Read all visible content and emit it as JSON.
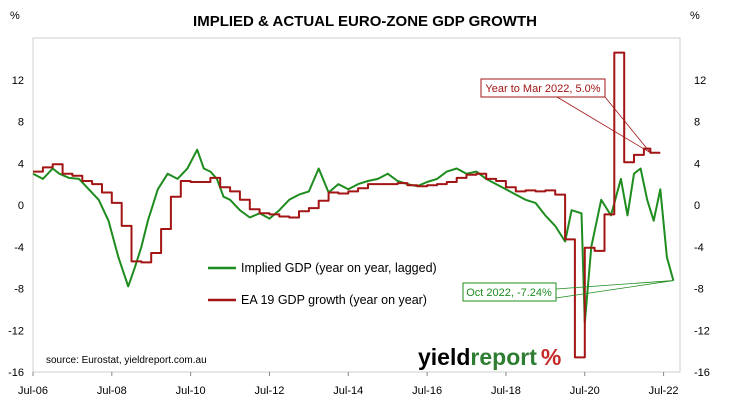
{
  "chart_data": {
    "type": "line",
    "title": "IMPLIED & ACTUAL EURO-ZONE GDP GROWTH",
    "y_unit_left": "%",
    "y_unit_right": "%",
    "ylim": [
      -16,
      16
    ],
    "y_ticks": [
      "12",
      "8",
      "4",
      "0",
      "-4",
      "-8",
      "-12",
      "-16"
    ],
    "y_tick_values": [
      12,
      8,
      4,
      0,
      -4,
      -8,
      -12,
      -16
    ],
    "xlim": [
      "2006-07",
      "2022-12"
    ],
    "x_tick_labels": [
      "Jul-06",
      "Jul-08",
      "Jul-10",
      "Jul-12",
      "Jul-14",
      "Jul-16",
      "Jul-18",
      "Jul-20",
      "Jul-22"
    ],
    "x_tick_dates": [
      "2006-07",
      "2008-07",
      "2010-07",
      "2012-07",
      "2014-07",
      "2016-07",
      "2018-07",
      "2020-07",
      "2022-07"
    ],
    "grid": false,
    "legend_placement": "lower-middle",
    "series": [
      {
        "name": "Implied GDP (year on year, lagged)",
        "color": "#1e8c1e",
        "x": [
          "2006-07",
          "2006-10",
          "2007-01",
          "2007-03",
          "2007-06",
          "2007-09",
          "2007-12",
          "2008-03",
          "2008-06",
          "2008-09",
          "2008-12",
          "2009-02",
          "2009-04",
          "2009-06",
          "2009-09",
          "2009-12",
          "2010-03",
          "2010-06",
          "2010-09",
          "2010-11",
          "2011-01",
          "2011-03",
          "2011-05",
          "2011-07",
          "2011-10",
          "2012-01",
          "2012-04",
          "2012-07",
          "2012-10",
          "2013-01",
          "2013-04",
          "2013-07",
          "2013-10",
          "2014-01",
          "2014-04",
          "2014-07",
          "2014-10",
          "2015-01",
          "2015-04",
          "2015-07",
          "2015-10",
          "2016-01",
          "2016-04",
          "2016-07",
          "2016-10",
          "2017-01",
          "2017-04",
          "2017-07",
          "2017-10",
          "2018-01",
          "2018-04",
          "2018-07",
          "2018-10",
          "2019-01",
          "2019-04",
          "2019-07",
          "2019-10",
          "2020-01",
          "2020-03",
          "2020-06",
          "2020-07",
          "2020-09",
          "2020-12",
          "2021-03",
          "2021-06",
          "2021-08",
          "2021-10",
          "2021-12",
          "2022-02",
          "2022-03",
          "2022-04",
          "2022-06",
          "2022-08",
          "2022-10"
        ],
        "values": [
          3.0,
          2.5,
          3.5,
          3.0,
          2.6,
          2.5,
          1.5,
          0.5,
          -1.5,
          -5.0,
          -7.8,
          -6.0,
          -4.0,
          -1.5,
          1.5,
          3.0,
          2.5,
          3.5,
          5.3,
          3.5,
          3.2,
          2.5,
          0.8,
          0.5,
          -0.5,
          -1.2,
          -0.8,
          -1.3,
          -0.5,
          0.5,
          1.0,
          1.3,
          3.5,
          1.2,
          2.0,
          1.5,
          2.0,
          2.3,
          2.5,
          3.0,
          2.3,
          2.0,
          1.8,
          2.2,
          2.5,
          3.2,
          3.5,
          3.0,
          3.2,
          2.5,
          2.0,
          1.5,
          1.0,
          0.5,
          0.2,
          -1.0,
          -2.0,
          -3.5,
          -0.5,
          -0.8,
          -11.3,
          -4.0,
          0.5,
          -1.0,
          2.5,
          -1.0,
          3.0,
          3.5,
          0.5,
          -0.5,
          -1.5,
          1.5,
          -5.0,
          -7.24
        ]
      },
      {
        "name": "EA 19 GDP growth (year on year)",
        "color": "#a31515",
        "x": [
          "2006-07",
          "2006-10",
          "2007-01",
          "2007-04",
          "2007-07",
          "2007-10",
          "2008-01",
          "2008-04",
          "2008-07",
          "2008-10",
          "2009-01",
          "2009-04",
          "2009-07",
          "2009-10",
          "2010-01",
          "2010-04",
          "2010-07",
          "2010-10",
          "2011-01",
          "2011-04",
          "2011-07",
          "2011-10",
          "2012-01",
          "2012-04",
          "2012-07",
          "2012-10",
          "2013-01",
          "2013-04",
          "2013-07",
          "2013-10",
          "2014-01",
          "2014-04",
          "2014-07",
          "2014-10",
          "2015-01",
          "2015-04",
          "2015-07",
          "2015-10",
          "2016-01",
          "2016-04",
          "2016-07",
          "2016-10",
          "2017-01",
          "2017-04",
          "2017-07",
          "2017-10",
          "2018-01",
          "2018-04",
          "2018-07",
          "2018-10",
          "2019-01",
          "2019-04",
          "2019-07",
          "2019-10",
          "2020-01",
          "2020-04",
          "2020-07",
          "2020-10",
          "2021-01",
          "2021-04",
          "2021-07",
          "2021-10",
          "2022-01",
          "2022-03"
        ],
        "values": [
          3.2,
          3.6,
          3.9,
          3.0,
          2.8,
          2.3,
          2.0,
          1.2,
          0.2,
          -2.0,
          -5.4,
          -5.5,
          -4.6,
          -2.3,
          0.8,
          2.3,
          2.2,
          2.2,
          2.6,
          1.7,
          1.3,
          0.5,
          -0.4,
          -0.8,
          -0.9,
          -1.1,
          -1.2,
          -0.6,
          -0.3,
          0.4,
          1.2,
          1.1,
          1.3,
          1.6,
          2.0,
          2.0,
          2.0,
          2.1,
          1.9,
          1.8,
          1.9,
          2.0,
          2.2,
          2.6,
          2.9,
          3.0,
          2.5,
          2.3,
          1.7,
          1.3,
          1.4,
          1.3,
          1.4,
          1.0,
          -3.3,
          -14.6,
          -4.1,
          -4.4,
          -0.9,
          14.6,
          4.1,
          4.8,
          5.4,
          5.0
        ]
      }
    ],
    "annotations": [
      {
        "text": "Year to Mar 2022, 5.0%",
        "color": "#a31515",
        "x": "2022-03",
        "value": 5.0
      },
      {
        "text": "Oct 2022, -7.24%",
        "color": "#1e8c1e",
        "x": "2022-10",
        "value": -7.24
      }
    ],
    "source": "source: Eurostat, yieldreport.com.au",
    "brand": {
      "word1": "yield",
      "word2": "report",
      "symbol": "%",
      "color1": "#000000",
      "color2": "#2e7d32",
      "symbol_color": "#c62828"
    }
  }
}
